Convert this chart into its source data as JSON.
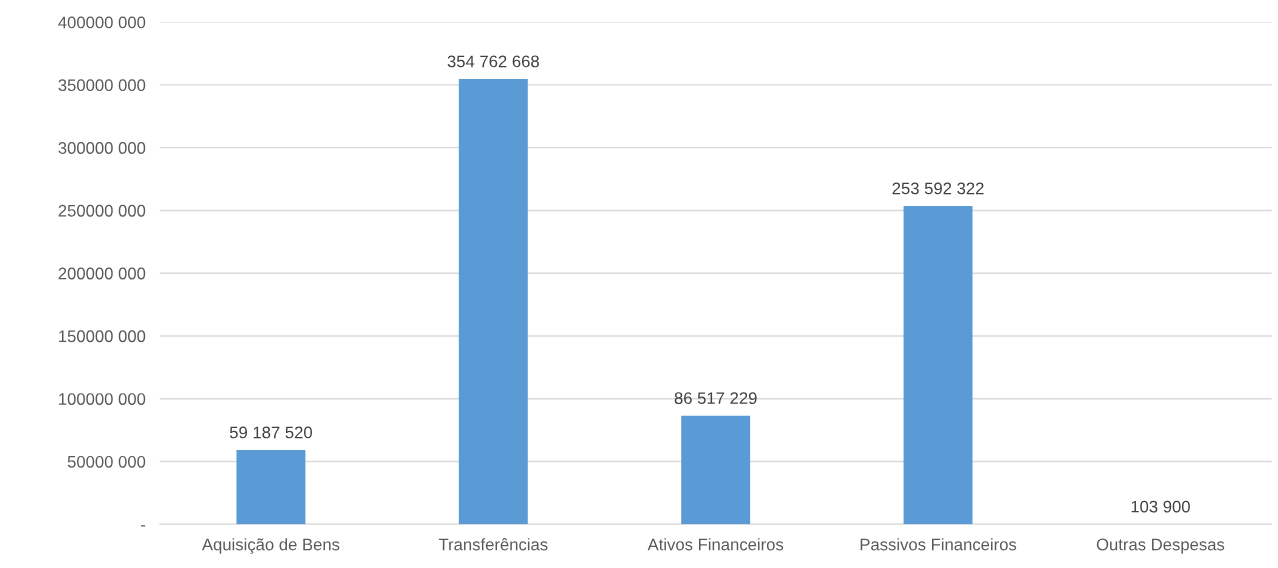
{
  "chart_data": {
    "type": "bar",
    "categories": [
      "Aquisição de Bens",
      "Transferências",
      "Ativos Financeiros",
      "Passivos Financeiros",
      "Outras Despesas"
    ],
    "values": [
      59187520,
      354762668,
      86517229,
      253592322,
      103900
    ],
    "value_labels": [
      "59 187 520",
      "354 762 668",
      "86 517 229",
      "253 592 322",
      "103 900"
    ],
    "color": "#5b9bd5",
    "ylim": [
      0,
      400000000
    ],
    "yticks": [
      {
        "value": 0,
        "label": "-"
      },
      {
        "value": 50000000,
        "label": "50000 000"
      },
      {
        "value": 100000000,
        "label": "100000 000"
      },
      {
        "value": 150000000,
        "label": "150000 000"
      },
      {
        "value": 200000000,
        "label": "200000 000"
      },
      {
        "value": 250000000,
        "label": "250000 000"
      },
      {
        "value": 300000000,
        "label": "300000 000"
      },
      {
        "value": 350000000,
        "label": "350000 000"
      },
      {
        "value": 400000000,
        "label": "400000 000"
      }
    ],
    "grid": "y",
    "legend": false
  }
}
